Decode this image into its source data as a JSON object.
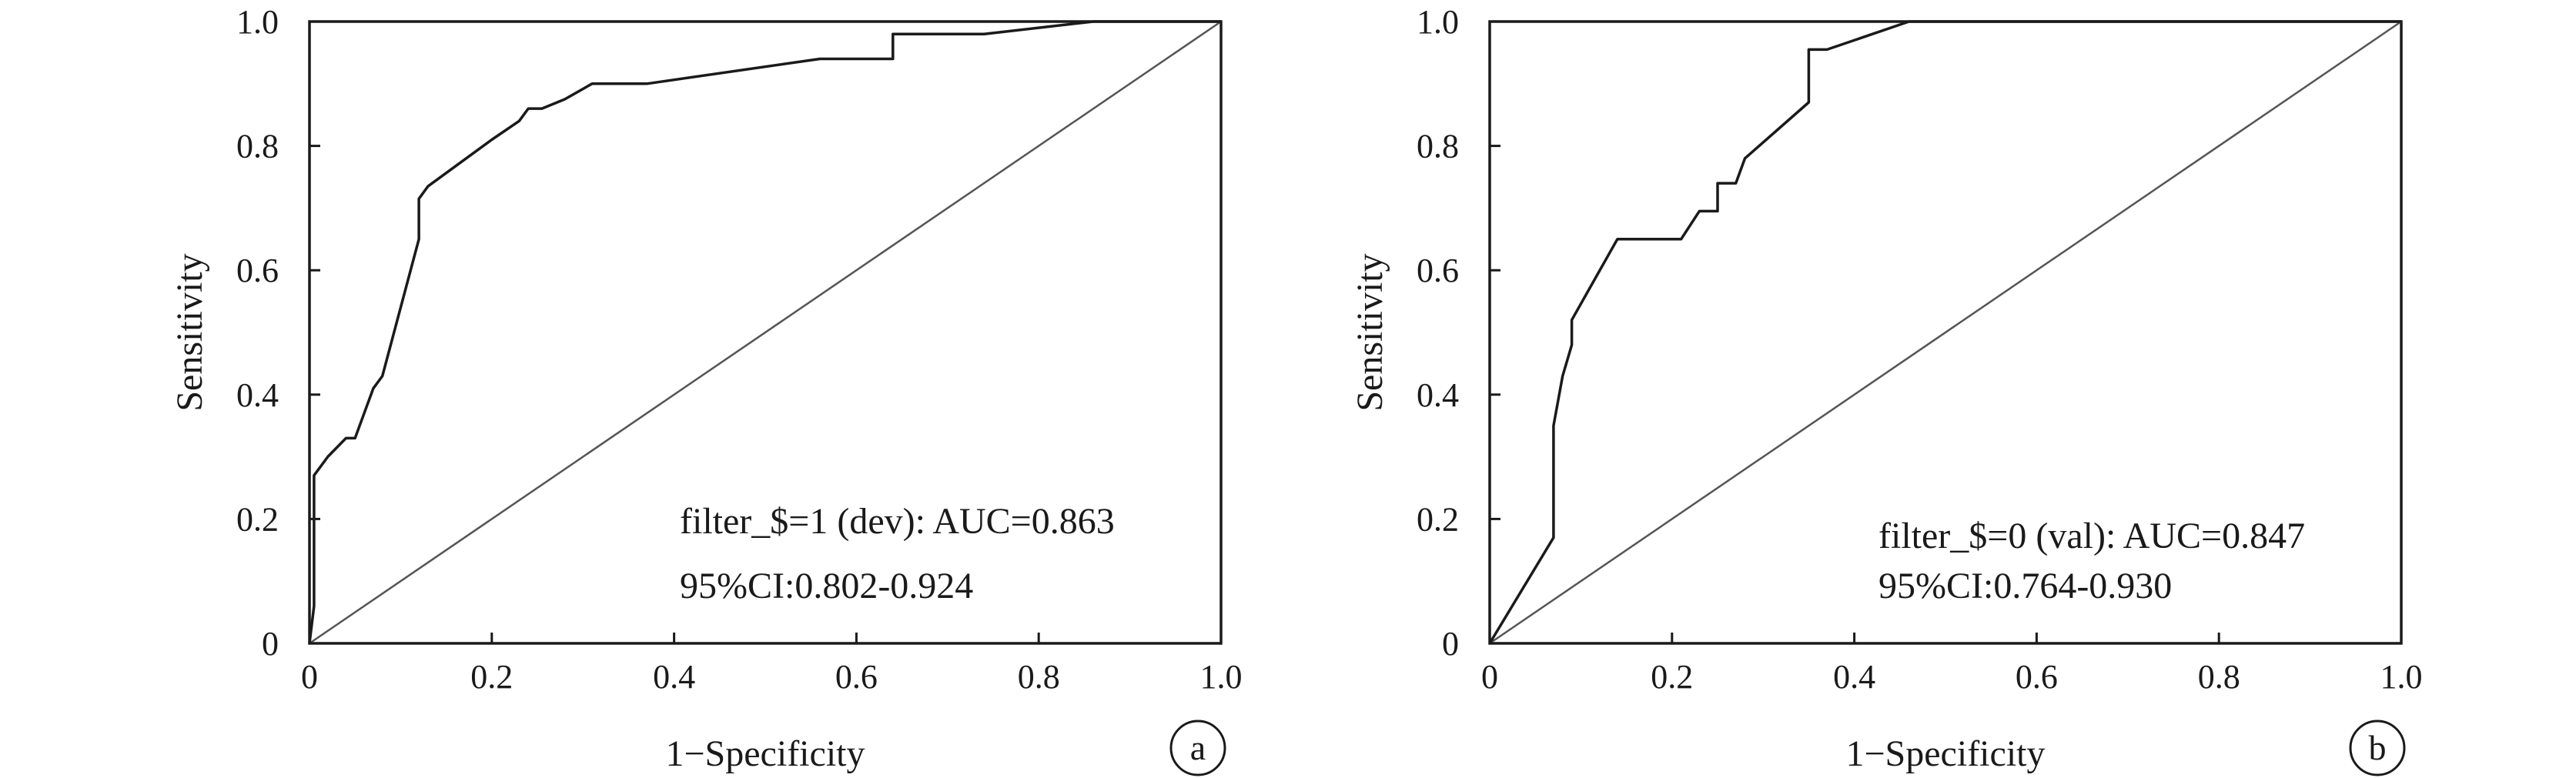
{
  "chart_data": [
    {
      "type": "line",
      "panel": "a",
      "xlabel": "1−Specificity",
      "ylabel": "Sensitivity",
      "xlim": [
        0,
        1
      ],
      "ylim": [
        0,
        1
      ],
      "xticks": [
        "0",
        "0.2",
        "0.4",
        "0.6",
        "0.8",
        "1.0"
      ],
      "yticks": [
        "0",
        "0.2",
        "0.4",
        "0.6",
        "0.8",
        "1.0"
      ],
      "annotations": [
        "filter_$=1 (dev): AUC=0.863",
        "95%CI:0.802-0.924"
      ],
      "series": [
        {
          "x": [
            0,
            0.005,
            0.005,
            0.01,
            0.02,
            0.04,
            0.05,
            0.055,
            0.07,
            0.08,
            0.12,
            0.12,
            0.13,
            0.2,
            0.23,
            0.24,
            0.255,
            0.28,
            0.31,
            0.37,
            0.56,
            0.64,
            0.64,
            0.74,
            0.86,
            1.0
          ],
          "y": [
            0,
            0.06,
            0.27,
            0.28,
            0.3,
            0.33,
            0.33,
            0.35,
            0.41,
            0.43,
            0.65,
            0.715,
            0.735,
            0.81,
            0.84,
            0.86,
            0.86,
            0.875,
            0.9,
            0.9,
            0.94,
            0.94,
            0.98,
            0.98,
            1.0,
            1.0
          ]
        },
        {
          "x": [
            0,
            1
          ],
          "y": [
            0,
            1
          ]
        }
      ]
    },
    {
      "type": "line",
      "panel": "b",
      "xlabel": "1−Specificity",
      "ylabel": "Sensitivity",
      "xlim": [
        0,
        1
      ],
      "ylim": [
        0,
        1
      ],
      "xticks": [
        "0",
        "0.2",
        "0.4",
        "0.6",
        "0.8",
        "1.0"
      ],
      "yticks": [
        "0",
        "0.2",
        "0.4",
        "0.6",
        "0.8",
        "1.0"
      ],
      "annotations": [
        "filter_$=0 (val): AUC=0.847",
        "95%CI:0.764-0.930"
      ],
      "series": [
        {
          "x": [
            0,
            0.07,
            0.07,
            0.08,
            0.09,
            0.09,
            0.14,
            0.21,
            0.23,
            0.25,
            0.25,
            0.27,
            0.28,
            0.35,
            0.35,
            0.37,
            0.46,
            1.0
          ],
          "y": [
            0,
            0.17,
            0.35,
            0.43,
            0.48,
            0.52,
            0.65,
            0.65,
            0.695,
            0.695,
            0.74,
            0.74,
            0.78,
            0.87,
            0.955,
            0.955,
            1.0,
            1.0
          ]
        },
        {
          "x": [
            0,
            1
          ],
          "y": [
            0,
            1
          ]
        }
      ]
    }
  ]
}
